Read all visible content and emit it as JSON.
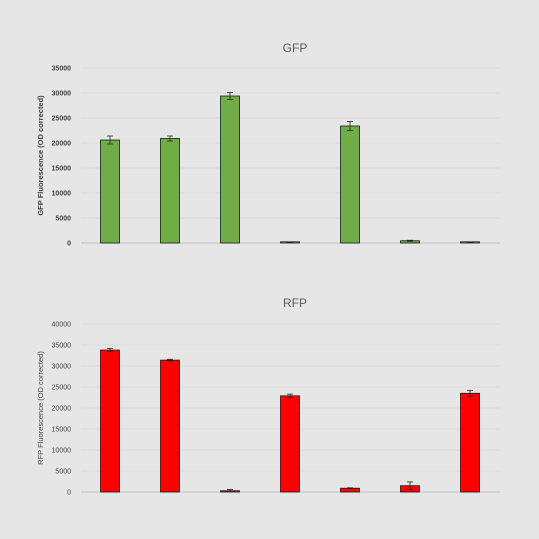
{
  "chart_data": [
    {
      "type": "bar",
      "title": "GFP",
      "ylabel": "GFP Fluorescence (OD corrected)",
      "ylabel_bold": true,
      "ylim": [
        0,
        35000
      ],
      "yticks": [
        0,
        5000,
        10000,
        15000,
        20000,
        25000,
        30000,
        35000
      ],
      "grid": true,
      "color": "#70ad47",
      "categories": [
        "",
        "",
        "",
        "",
        "",
        "",
        ""
      ],
      "values": [
        20600,
        20900,
        29400,
        150,
        23400,
        450,
        150
      ],
      "errors": [
        800,
        500,
        700,
        50,
        900,
        100,
        50
      ]
    },
    {
      "type": "bar",
      "title": "RFP",
      "ylabel": "RFP Fluorescence (OD corrected)",
      "ylabel_bold": false,
      "ylim": [
        0,
        40000
      ],
      "yticks": [
        0,
        5000,
        10000,
        15000,
        20000,
        25000,
        30000,
        35000,
        40000
      ],
      "grid": true,
      "color": "#ff0000",
      "categories": [
        "",
        "",
        "",
        "",
        "",
        "",
        ""
      ],
      "values": [
        33800,
        31400,
        300,
        22900,
        900,
        1500,
        23500
      ],
      "errors": [
        400,
        200,
        300,
        400,
        100,
        900,
        700
      ]
    }
  ]
}
